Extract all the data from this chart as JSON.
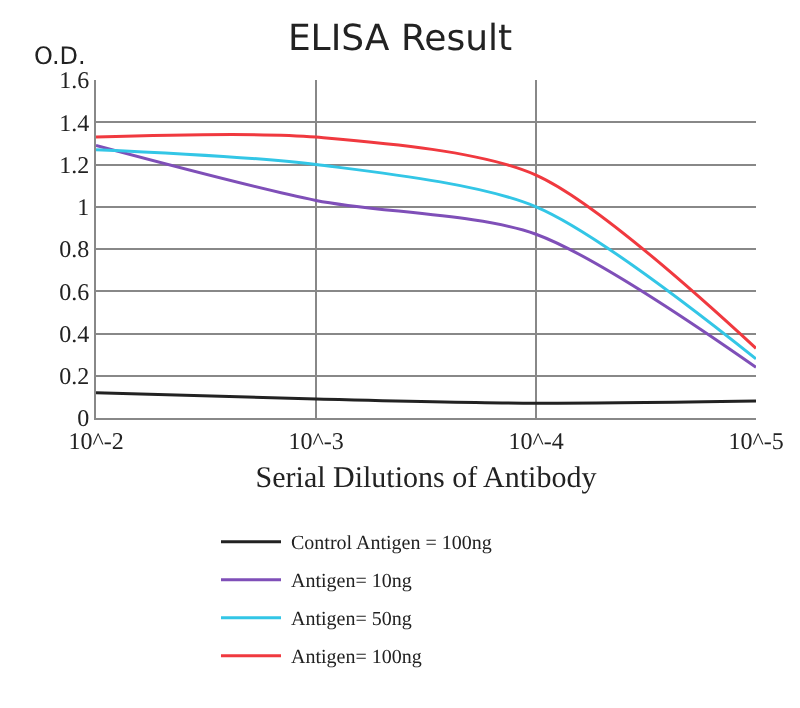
{
  "chart_data": {
    "type": "line",
    "title": "ELISA Result",
    "ylabel": "O.D.",
    "xlabel": "Serial Dilutions of Antibody",
    "categories": [
      "10^-2",
      "10^-3",
      "10^-4",
      "10^-5"
    ],
    "series": [
      {
        "name": "Control Antigen = 100ng",
        "color": "#222222",
        "values": [
          0.12,
          0.09,
          0.07,
          0.08
        ]
      },
      {
        "name": "Antigen= 10ng",
        "color": "#7f4fb8",
        "values": [
          1.29,
          1.03,
          0.87,
          0.24
        ]
      },
      {
        "name": "Antigen= 50ng",
        "color": "#33c6e6",
        "values": [
          1.27,
          1.2,
          1.0,
          0.28
        ]
      },
      {
        "name": "Antigen= 100ng",
        "color": "#f0393f",
        "values": [
          1.33,
          1.33,
          1.15,
          0.33
        ]
      }
    ],
    "ylim": [
      0,
      1.6
    ],
    "yticks": [
      0,
      0.2,
      0.4,
      0.6,
      0.8,
      1,
      1.2,
      1.4,
      1.6
    ],
    "grid": true,
    "legend": "bottom",
    "marker": "none",
    "line_style": "solid"
  }
}
